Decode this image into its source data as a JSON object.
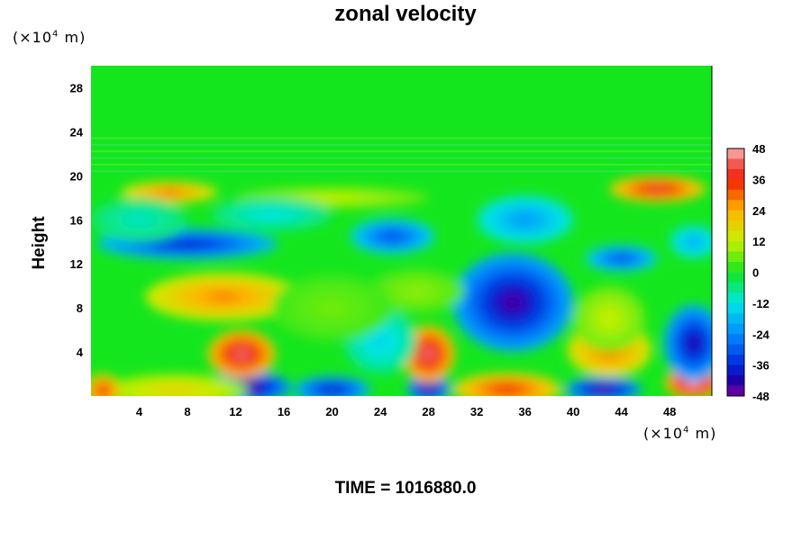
{
  "chart_data": {
    "type": "heatmap",
    "title": "zonal velocity",
    "xlabel": "",
    "ylabel": "Height",
    "x_unit_base": "(×10",
    "x_unit_exp": "4",
    "x_unit_tail": " m)",
    "y_unit_base": "(×10",
    "y_unit_exp": "4",
    "y_unit_tail": " m)",
    "xlim": [
      0,
      51.5
    ],
    "ylim": [
      0,
      30
    ],
    "x_ticks": [
      4,
      8,
      12,
      16,
      20,
      24,
      28,
      32,
      36,
      40,
      44,
      48
    ],
    "y_ticks": [
      4,
      8,
      12,
      16,
      20,
      24,
      28
    ],
    "colorbar": {
      "min": -48,
      "max": 48,
      "step": 4,
      "tick_labels": [
        48,
        36,
        24,
        12,
        0,
        -12,
        -24,
        -36,
        -48
      ]
    },
    "background_value": 0,
    "features": [
      {
        "x": 13,
        "y": 0.8,
        "rx": 3.6,
        "ry": 1.4,
        "value": -48
      },
      {
        "x": 20,
        "y": 0.6,
        "rx": 3.2,
        "ry": 1.2,
        "value": -40
      },
      {
        "x": 28,
        "y": 0.7,
        "rx": 1.8,
        "ry": 1.2,
        "value": -46
      },
      {
        "x": 34.5,
        "y": 0.6,
        "rx": 4.5,
        "ry": 1.5,
        "value": 36
      },
      {
        "x": 42.5,
        "y": 0.6,
        "rx": 3.2,
        "ry": 1.1,
        "value": -46
      },
      {
        "x": 50,
        "y": 1.2,
        "rx": 2.4,
        "ry": 1.5,
        "value": 48
      },
      {
        "x": 12.5,
        "y": 3.8,
        "rx": 2.8,
        "ry": 2.2,
        "value": 44
      },
      {
        "x": 28,
        "y": 3.8,
        "rx": 2.2,
        "ry": 2.6,
        "value": 44
      },
      {
        "x": 7,
        "y": 0.5,
        "rx": 6,
        "ry": 1.5,
        "value": 18
      },
      {
        "x": 1,
        "y": 0.5,
        "rx": 1.5,
        "ry": 1.5,
        "value": 36
      },
      {
        "x": 43,
        "y": 4.2,
        "rx": 3.5,
        "ry": 2.5,
        "value": 30
      },
      {
        "x": 50,
        "y": 4.8,
        "rx": 2.5,
        "ry": 3.5,
        "value": -42
      },
      {
        "x": 35,
        "y": 8.5,
        "rx": 5,
        "ry": 4.5,
        "value": -44
      },
      {
        "x": 43,
        "y": 7,
        "rx": 3,
        "ry": 3,
        "value": 12
      },
      {
        "x": 24,
        "y": 5,
        "rx": 3,
        "ry": 3,
        "value": -14
      },
      {
        "x": 11,
        "y": 9,
        "rx": 6.5,
        "ry": 2.2,
        "value": 28
      },
      {
        "x": 27,
        "y": 9.5,
        "rx": 4,
        "ry": 2,
        "value": 8
      },
      {
        "x": 20,
        "y": 8,
        "rx": 5,
        "ry": 3,
        "value": 6
      },
      {
        "x": 8,
        "y": 13.8,
        "rx": 7.5,
        "ry": 1.4,
        "value": -38
      },
      {
        "x": 25,
        "y": 14.5,
        "rx": 3.5,
        "ry": 1.6,
        "value": -32
      },
      {
        "x": 36,
        "y": 16,
        "rx": 4,
        "ry": 2.2,
        "value": -22
      },
      {
        "x": 44,
        "y": 12.5,
        "rx": 3,
        "ry": 1.2,
        "value": -32
      },
      {
        "x": 50,
        "y": 14,
        "rx": 2,
        "ry": 1.5,
        "value": -20
      },
      {
        "x": 6.5,
        "y": 18.5,
        "rx": 4,
        "ry": 1,
        "value": 30
      },
      {
        "x": 47,
        "y": 18.8,
        "rx": 4,
        "ry": 1.2,
        "value": 40
      },
      {
        "x": 20,
        "y": 18,
        "rx": 8,
        "ry": 1,
        "value": 12
      },
      {
        "x": 4,
        "y": 16,
        "rx": 4,
        "ry": 2,
        "value": -10
      },
      {
        "x": 15,
        "y": 16.5,
        "rx": 5,
        "ry": 1.5,
        "value": -12
      }
    ]
  },
  "time_label": "TIME = 1016880.0"
}
